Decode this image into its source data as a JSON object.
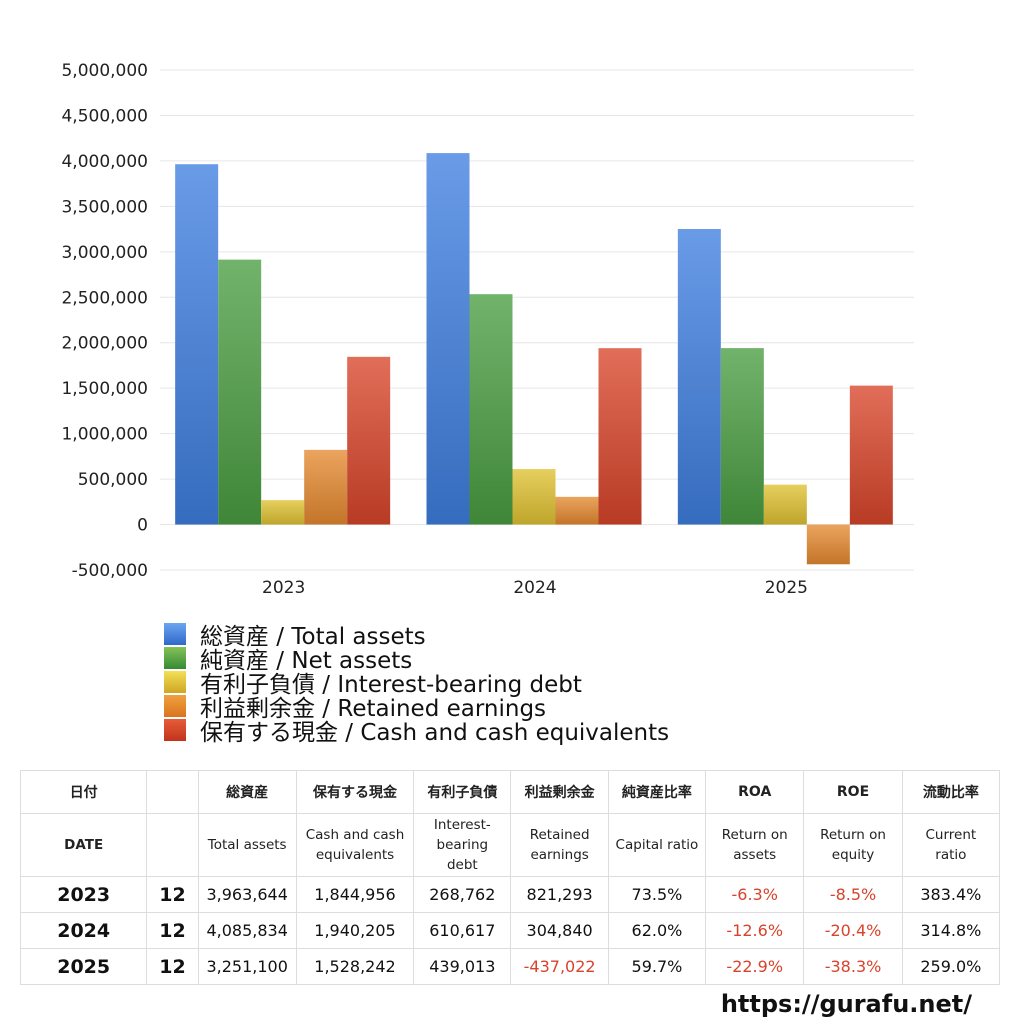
{
  "chart_data": {
    "type": "bar",
    "categories": [
      "2023",
      "2024",
      "2025"
    ],
    "series": [
      {
        "name": "総資産 / Total assets",
        "values": [
          3963644,
          4085834,
          3251100
        ],
        "color": "#3f7fe0"
      },
      {
        "name": "純資産 / Net assets",
        "values": [
          2914000,
          2534000,
          1941000
        ],
        "color": "#4a9e42"
      },
      {
        "name": "有利子負債 / Interest-bearing debt",
        "values": [
          268762,
          610617,
          439013
        ],
        "color": "#e0c232"
      },
      {
        "name": "利益剰余金 / Retained earnings",
        "values": [
          821293,
          304840,
          -437022
        ],
        "color": "#e58a30"
      },
      {
        "name": "保有する現金 /  Cash and cash equivalents",
        "values": [
          1844956,
          1940205,
          1528242
        ],
        "color": "#d9452a"
      }
    ],
    "ylim": [
      -500000,
      5000000
    ],
    "yticks": [
      "5,000,000",
      "4,500,000",
      "4,000,000",
      "3,500,000",
      "3,000,000",
      "2,500,000",
      "2,000,000",
      "1,500,000",
      "1,000,000",
      "500,000",
      "0",
      "-500,000"
    ],
    "ytick_values": [
      5000000,
      4500000,
      4000000,
      3500000,
      3000000,
      2500000,
      2000000,
      1500000,
      1000000,
      500000,
      0,
      -500000
    ],
    "grid": true,
    "legend_position": "bottom-left"
  },
  "table": {
    "header_jp": [
      "日付",
      "",
      "総資産",
      "保有する現金",
      "有利子負債",
      "利益剰余金",
      "純資産比率",
      "ROA",
      "ROE",
      "流動比率"
    ],
    "header_en": [
      "DATE",
      "",
      "Total assets",
      "Cash and cash equivalents",
      "Interest-bearing debt",
      "Retained earnings",
      "Capital ratio",
      "Return on assets",
      "Return on equity",
      "Current ratio"
    ],
    "rows": [
      {
        "year": "2023",
        "month": "12",
        "total_assets": "3,963,644",
        "cash": "1,844,956",
        "debt": "268,762",
        "retained": "821,293",
        "capital_ratio": "73.5%",
        "roa": "-6.3%",
        "roe": "-8.5%",
        "current_ratio": "383.4%"
      },
      {
        "year": "2024",
        "month": "12",
        "total_assets": "4,085,834",
        "cash": "1,940,205",
        "debt": "610,617",
        "retained": "304,840",
        "capital_ratio": "62.0%",
        "roa": "-12.6%",
        "roe": "-20.4%",
        "current_ratio": "314.8%"
      },
      {
        "year": "2025",
        "month": "12",
        "total_assets": "3,251,100",
        "cash": "1,528,242",
        "debt": "439,013",
        "retained": "-437,022",
        "capital_ratio": "59.7%",
        "roa": "-22.9%",
        "roe": "-38.3%",
        "current_ratio": "259.0%"
      }
    ]
  },
  "footer": {
    "url": "https://gurafu.net/"
  }
}
